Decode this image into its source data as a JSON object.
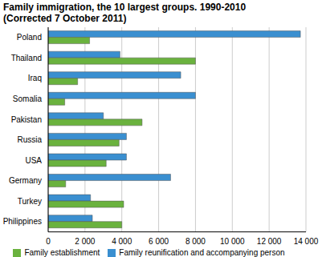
{
  "chart_data": {
    "type": "bar",
    "title": "Family immigration, the 10 largest groups. 1990-2010",
    "subtitle": "(Corrected 7 October 2011)",
    "orientation": "horizontal",
    "categories": [
      "Poland",
      "Thailand",
      "Iraq",
      "Somalia",
      "Pakistan",
      "Russia",
      "USA",
      "Germany",
      "Turkey",
      "Philippines"
    ],
    "series": [
      {
        "name": "Family reunification and accompanying person",
        "color": "#3a8fd0",
        "values": [
          13700,
          3900,
          7200,
          8000,
          3000,
          4250,
          4250,
          6650,
          2300,
          2400
        ]
      },
      {
        "name": "Family establishment",
        "color": "#6ab23e",
        "values": [
          2250,
          8000,
          1600,
          900,
          5100,
          3850,
          3150,
          950,
          4100,
          4000
        ]
      }
    ],
    "xlim": [
      0,
      14000
    ],
    "xticks": [
      0,
      {
        "value": 2000,
        "label": "2 000"
      },
      {
        "value": 4000,
        "label": "4 000"
      },
      {
        "value": 6000,
        "label": "6 000"
      },
      {
        "value": 8000,
        "label": "8 000"
      },
      {
        "value": 10000,
        "label": "10 000"
      },
      {
        "value": 12000,
        "label": "12 000"
      },
      {
        "value": 14000,
        "label": "14 000"
      }
    ],
    "grid": true,
    "legend": "bottom"
  }
}
